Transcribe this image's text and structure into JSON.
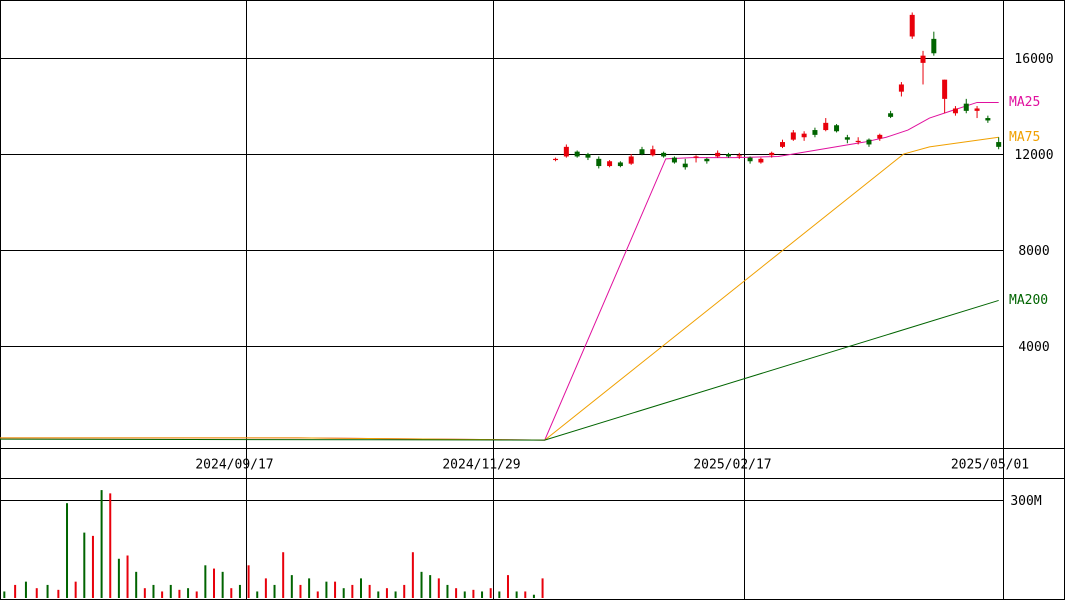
{
  "chart_data": [
    {
      "type": "candlestick",
      "xlim": [
        0,
        232
      ],
      "xticks": [
        {
          "value": 57,
          "label": "2024/09/17"
        },
        {
          "value": 114,
          "label": "2024/11/29"
        },
        {
          "value": 172,
          "label": "2025/02/17"
        },
        {
          "value": 232,
          "label": "2025/05/01"
        }
      ],
      "ylim": [
        -250,
        18420
      ],
      "yticks": [
        4000,
        8000,
        12000,
        16000
      ],
      "grid": true,
      "up_color": "#e8000b",
      "down_color": "#006400",
      "candles": {
        "x": [
          128.5,
          131,
          133.5,
          136,
          138.5,
          141,
          143.5,
          146,
          148.5,
          151,
          153.5,
          156,
          158.5,
          161,
          163.5,
          166,
          168.5,
          171,
          173.5,
          176,
          178.5,
          181,
          183.5,
          186,
          188.5,
          191,
          193.5,
          196,
          198.5,
          201,
          203.5,
          206,
          208.5,
          211,
          213.5,
          216,
          218.5,
          221,
          223.5,
          226,
          228.5,
          231
        ],
        "open": [
          11750,
          11900,
          12100,
          12000,
          11800,
          11500,
          11650,
          11600,
          12200,
          11950,
          12050,
          11850,
          11600,
          11850,
          11800,
          11900,
          12000,
          11900,
          11850,
          11650,
          11950,
          12300,
          12600,
          12700,
          13000,
          13000,
          13200,
          12700,
          12500,
          12600,
          12650,
          13700,
          14600,
          16900,
          15800,
          16800,
          14300,
          13700,
          14100,
          13800,
          13500,
          12500
        ],
        "high": [
          11850,
          12400,
          12150,
          12050,
          11900,
          11750,
          11700,
          12000,
          12300,
          12350,
          12100,
          11900,
          11800,
          11950,
          11850,
          12150,
          12050,
          12050,
          11900,
          11850,
          12100,
          12600,
          13000,
          12950,
          13100,
          13500,
          13250,
          12800,
          12700,
          12650,
          12850,
          13800,
          15000,
          17900,
          16300,
          17100,
          15100,
          14000,
          14300,
          14000,
          13600,
          12700
        ],
        "low": [
          11700,
          11850,
          11850,
          11750,
          11400,
          11450,
          11450,
          11550,
          11950,
          11900,
          11850,
          11600,
          11350,
          11650,
          11600,
          11850,
          11850,
          11800,
          11600,
          11600,
          11850,
          12250,
          12550,
          12550,
          12700,
          12950,
          12900,
          12450,
          12400,
          12300,
          12550,
          13500,
          14400,
          16800,
          14900,
          16100,
          13700,
          13600,
          13700,
          13500,
          13300,
          12200
        ],
        "close": [
          11800,
          12300,
          11900,
          11850,
          11500,
          11700,
          11500,
          11900,
          12000,
          12200,
          11900,
          11650,
          11450,
          11900,
          11700,
          12050,
          11900,
          11950,
          11700,
          11800,
          12050,
          12500,
          12900,
          12850,
          12800,
          13300,
          12950,
          12600,
          12550,
          12400,
          12800,
          13550,
          14900,
          17800,
          16100,
          16200,
          15100,
          13900,
          13800,
          13900,
          13400,
          12300
        ]
      },
      "series": [
        {
          "name": "MA25",
          "color": "#e0109e",
          "x": [
            0,
            69,
            126,
            154,
            160,
            170,
            180,
            190,
            200,
            205,
            210,
            215,
            220,
            226,
            231
          ],
          "values": [
            170,
            170,
            80,
            11800,
            11850,
            11850,
            11900,
            12200,
            12500,
            12700,
            13000,
            13500,
            13800,
            14150,
            14150
          ]
        },
        {
          "name": "MA75",
          "color": "#f0a000",
          "x": [
            0,
            69,
            126,
            209,
            215,
            231
          ],
          "values": [
            170,
            170,
            80,
            12000,
            12300,
            12700
          ]
        },
        {
          "name": "MA200",
          "color": "#006400",
          "x": [
            0,
            126,
            231
          ],
          "values": [
            120,
            80,
            5900
          ]
        }
      ]
    },
    {
      "type": "bar",
      "xlim": [
        0,
        232
      ],
      "ylim": [
        0,
        367000000
      ],
      "yticks": [
        {
          "value": 300000000,
          "label": "300M"
        }
      ],
      "x": [
        1,
        3.5,
        6,
        8.5,
        11,
        13.5,
        15.5,
        17.5,
        19.5,
        21.5,
        23.5,
        25.5,
        27.5,
        29.5,
        31.5,
        33.5,
        35.5,
        37.5,
        39.5,
        41.5,
        43.5,
        45.5,
        47.5,
        49.5,
        51.5,
        53.5,
        55.5,
        57.5,
        59.5,
        61.5,
        63.5,
        65.5,
        67.5,
        69.5,
        71.5,
        73.5,
        75.5,
        77.5,
        79.5,
        81.5,
        83.5,
        85.5,
        87.5,
        89.5,
        91.5,
        93.5,
        95.5,
        97.5,
        99.5,
        101.5,
        103.5,
        105.5,
        107.5,
        109.5,
        111.5,
        113.5,
        115.5,
        117.5,
        119.5,
        121.5,
        123.5,
        125.5
      ],
      "values": [
        20000000,
        40000000,
        50000000,
        30000000,
        40000000,
        25000000,
        290000000,
        50000000,
        200000000,
        190000000,
        330000000,
        320000000,
        120000000,
        130000000,
        80000000,
        30000000,
        40000000,
        20000000,
        40000000,
        25000000,
        30000000,
        20000000,
        100000000,
        90000000,
        80000000,
        30000000,
        40000000,
        100000000,
        20000000,
        60000000,
        40000000,
        140000000,
        70000000,
        40000000,
        60000000,
        20000000,
        50000000,
        50000000,
        30000000,
        40000000,
        60000000,
        40000000,
        20000000,
        30000000,
        20000000,
        40000000,
        140000000,
        80000000,
        70000000,
        60000000,
        40000000,
        30000000,
        20000000,
        25000000,
        20000000,
        30000000,
        20000000,
        70000000,
        20000000,
        20000000,
        10000000,
        60000000
      ],
      "colors": [
        "#006400",
        "#e8000b",
        "#006400",
        "#e8000b",
        "#006400",
        "#e8000b",
        "#006400",
        "#e8000b",
        "#006400",
        "#e8000b",
        "#006400",
        "#e8000b",
        "#006400",
        "#e8000b",
        "#006400",
        "#e8000b",
        "#006400",
        "#e8000b",
        "#006400",
        "#e8000b",
        "#006400",
        "#e8000b",
        "#006400",
        "#e8000b",
        "#006400",
        "#e8000b",
        "#006400",
        "#e8000b",
        "#006400",
        "#e8000b",
        "#006400",
        "#e8000b",
        "#006400",
        "#e8000b",
        "#006400",
        "#e8000b",
        "#006400",
        "#e8000b",
        "#006400",
        "#e8000b",
        "#006400",
        "#e8000b",
        "#006400",
        "#e8000b",
        "#006400",
        "#e8000b",
        "#e8000b",
        "#006400",
        "#006400",
        "#e8000b",
        "#006400",
        "#e8000b",
        "#006400",
        "#e8000b",
        "#006400",
        "#e8000b",
        "#006400",
        "#e8000b",
        "#006400",
        "#e8000b",
        "#006400",
        "#e8000b"
      ]
    }
  ]
}
